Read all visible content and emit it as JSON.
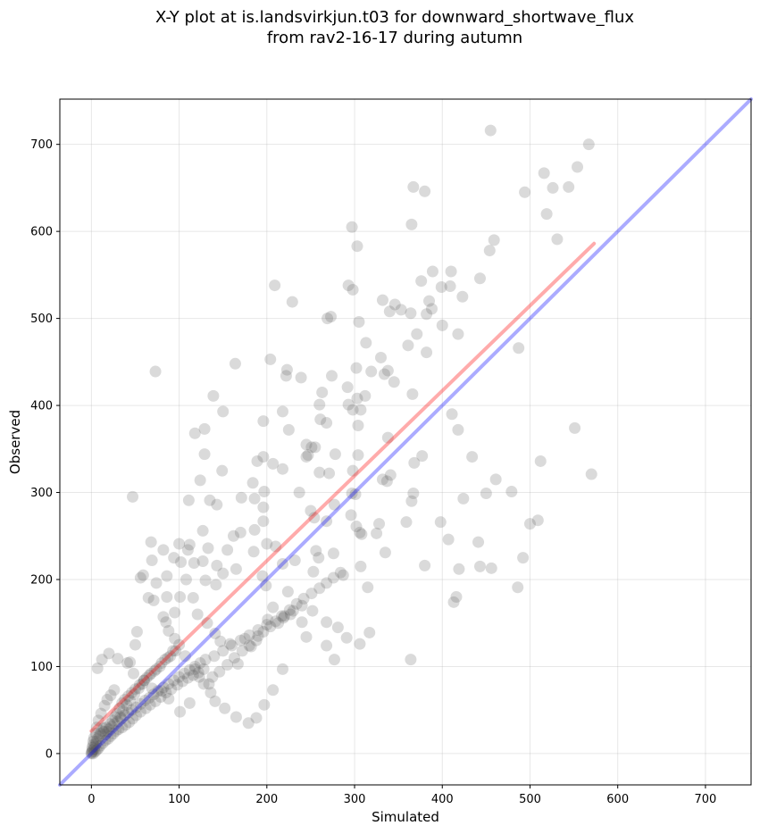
{
  "chart_data": {
    "type": "scatter",
    "title": "X-Y plot at is.landsvirkjun.t03 for downward_shortwave_flux\nfrom rav2-16-17 during autumn",
    "title_lines": [
      "X-Y plot at is.landsvirkjun.t03 for downward_shortwave_flux",
      "from rav2-16-17 during autumn"
    ],
    "xlabel": "Simulated",
    "ylabel": "Observed",
    "xlim": [
      -36,
      752
    ],
    "ylim": [
      -36,
      752
    ],
    "xticks": [
      0,
      100,
      200,
      300,
      400,
      500,
      600,
      700
    ],
    "yticks": [
      0,
      100,
      200,
      300,
      400,
      500,
      600,
      700
    ],
    "grid": true,
    "colors": {
      "points": "#555555",
      "identity_line": "#0000ff",
      "regression_line": "#ff0000"
    },
    "reference_lines": [
      {
        "kind": "identity",
        "x": [
          -36,
          752
        ],
        "y": [
          -36,
          752
        ],
        "color": "#0000ff"
      },
      {
        "kind": "regression",
        "x": [
          0,
          573
        ],
        "y": [
          26,
          586
        ],
        "color": "#ff0000"
      }
    ],
    "points": [
      [
        455,
        716
      ],
      [
        567,
        700
      ],
      [
        554,
        674
      ],
      [
        516,
        667
      ],
      [
        544,
        651
      ],
      [
        526,
        650
      ],
      [
        367,
        651
      ],
      [
        380,
        646
      ],
      [
        494,
        645
      ],
      [
        519,
        620
      ],
      [
        531,
        591
      ],
      [
        297,
        605
      ],
      [
        459,
        590
      ],
      [
        303,
        583
      ],
      [
        454,
        578
      ],
      [
        365,
        608
      ],
      [
        410,
        554
      ],
      [
        389,
        554
      ],
      [
        443,
        546
      ],
      [
        376,
        543
      ],
      [
        209,
        538
      ],
      [
        293,
        538
      ],
      [
        298,
        533
      ],
      [
        399,
        536
      ],
      [
        409,
        537
      ],
      [
        423,
        525
      ],
      [
        385,
        520
      ],
      [
        388,
        511
      ],
      [
        229,
        519
      ],
      [
        332,
        521
      ],
      [
        346,
        516
      ],
      [
        353,
        510
      ],
      [
        340,
        508
      ],
      [
        364,
        506
      ],
      [
        273,
        502
      ],
      [
        382,
        505
      ],
      [
        305,
        496
      ],
      [
        400,
        492
      ],
      [
        418,
        482
      ],
      [
        371,
        482
      ],
      [
        269,
        500
      ],
      [
        313,
        472
      ],
      [
        487,
        466
      ],
      [
        361,
        469
      ],
      [
        382,
        461
      ],
      [
        330,
        455
      ],
      [
        204,
        453
      ],
      [
        164,
        448
      ],
      [
        223,
        441
      ],
      [
        73,
        439
      ],
      [
        338,
        440
      ],
      [
        334,
        436
      ],
      [
        302,
        443
      ],
      [
        222,
        434
      ],
      [
        274,
        434
      ],
      [
        312,
        411
      ],
      [
        366,
        413
      ],
      [
        239,
        432
      ],
      [
        319,
        439
      ],
      [
        263,
        415
      ],
      [
        303,
        408
      ],
      [
        345,
        427
      ],
      [
        260,
        401
      ],
      [
        292,
        421
      ],
      [
        307,
        395
      ],
      [
        293,
        401
      ],
      [
        298,
        395
      ],
      [
        268,
        380
      ],
      [
        196,
        382
      ],
      [
        261,
        384
      ],
      [
        218,
        393
      ],
      [
        411,
        390
      ],
      [
        304,
        377
      ],
      [
        418,
        372
      ],
      [
        225,
        372
      ],
      [
        150,
        393
      ],
      [
        139,
        411
      ],
      [
        118,
        368
      ],
      [
        129,
        373
      ],
      [
        338,
        363
      ],
      [
        551,
        374
      ],
      [
        245,
        355
      ],
      [
        337,
        313
      ],
      [
        247,
        343
      ],
      [
        271,
        322
      ],
      [
        512,
        336
      ],
      [
        260,
        323
      ],
      [
        245,
        341
      ],
      [
        304,
        343
      ],
      [
        255,
        352
      ],
      [
        251,
        352
      ],
      [
        237,
        300
      ],
      [
        218,
        327
      ],
      [
        189,
        336
      ],
      [
        196,
        341
      ],
      [
        149,
        325
      ],
      [
        207,
        333
      ],
      [
        184,
        311
      ],
      [
        197,
        301
      ],
      [
        377,
        342
      ],
      [
        341,
        320
      ],
      [
        434,
        341
      ],
      [
        278,
        344
      ],
      [
        298,
        325
      ],
      [
        297,
        299
      ],
      [
        332,
        315
      ],
      [
        365,
        290
      ],
      [
        367,
        299
      ],
      [
        368,
        334
      ],
      [
        570,
        321
      ],
      [
        479,
        301
      ],
      [
        461,
        315
      ],
      [
        450,
        299
      ],
      [
        424,
        293
      ],
      [
        301,
        298
      ],
      [
        171,
        294
      ],
      [
        186,
        293
      ],
      [
        196,
        267
      ],
      [
        277,
        286
      ],
      [
        296,
        274
      ],
      [
        196,
        283
      ],
      [
        111,
        291
      ],
      [
        135,
        291
      ],
      [
        143,
        286
      ],
      [
        162,
        250
      ],
      [
        170,
        254
      ],
      [
        186,
        257
      ],
      [
        200,
        241
      ],
      [
        210,
        238
      ],
      [
        250,
        279
      ],
      [
        254,
        271
      ],
      [
        268,
        267
      ],
      [
        302,
        261
      ],
      [
        306,
        254
      ],
      [
        308,
        252
      ],
      [
        328,
        264
      ],
      [
        359,
        266
      ],
      [
        398,
        266
      ],
      [
        407,
        246
      ],
      [
        441,
        243
      ],
      [
        500,
        264
      ],
      [
        509,
        268
      ],
      [
        47,
        295
      ],
      [
        124,
        314
      ],
      [
        129,
        344
      ],
      [
        127,
        256
      ],
      [
        112,
        240
      ],
      [
        100,
        241
      ],
      [
        82,
        234
      ],
      [
        68,
        243
      ],
      [
        69,
        222
      ],
      [
        94,
        225
      ],
      [
        102,
        220
      ],
      [
        108,
        200
      ],
      [
        110,
        234
      ],
      [
        117,
        219
      ],
      [
        127,
        221
      ],
      [
        133,
        236
      ],
      [
        143,
        216
      ],
      [
        150,
        207
      ],
      [
        155,
        234
      ],
      [
        165,
        212
      ],
      [
        185,
        232
      ],
      [
        195,
        204
      ],
      [
        199,
        193
      ],
      [
        218,
        218
      ],
      [
        232,
        222
      ],
      [
        259,
        225
      ],
      [
        253,
        209
      ],
      [
        256,
        233
      ],
      [
        276,
        230
      ],
      [
        287,
        205
      ],
      [
        307,
        215
      ],
      [
        315,
        191
      ],
      [
        380,
        216
      ],
      [
        419,
        212
      ],
      [
        443,
        215
      ],
      [
        456,
        213
      ],
      [
        492,
        225
      ],
      [
        486,
        191
      ],
      [
        416,
        180
      ],
      [
        413,
        174
      ],
      [
        325,
        253
      ],
      [
        335,
        231
      ],
      [
        56,
        202
      ],
      [
        59,
        205
      ],
      [
        74,
        196
      ],
      [
        86,
        204
      ],
      [
        86,
        180
      ],
      [
        95,
        162
      ],
      [
        101,
        180
      ],
      [
        116,
        179
      ],
      [
        130,
        199
      ],
      [
        142,
        194
      ],
      [
        121,
        160
      ],
      [
        132,
        150
      ],
      [
        141,
        138
      ],
      [
        147,
        129
      ],
      [
        158,
        126
      ],
      [
        167,
        103
      ],
      [
        175,
        132
      ],
      [
        182,
        123
      ],
      [
        190,
        135
      ],
      [
        201,
        154
      ],
      [
        207,
        168
      ],
      [
        224,
        186
      ],
      [
        217,
        158
      ],
      [
        227,
        160
      ],
      [
        240,
        151
      ],
      [
        252,
        164
      ],
      [
        268,
        151
      ],
      [
        281,
        145
      ],
      [
        291,
        133
      ],
      [
        306,
        126
      ],
      [
        317,
        139
      ],
      [
        364,
        108
      ],
      [
        245,
        134
      ],
      [
        268,
        124
      ],
      [
        277,
        108
      ],
      [
        65,
        179
      ],
      [
        71,
        176
      ],
      [
        82,
        157
      ],
      [
        85,
        151
      ],
      [
        88,
        141
      ],
      [
        95,
        132
      ],
      [
        107,
        112
      ],
      [
        118,
        97
      ],
      [
        123,
        88
      ],
      [
        128,
        80
      ],
      [
        136,
        70
      ],
      [
        141,
        60
      ],
      [
        152,
        52
      ],
      [
        165,
        42
      ],
      [
        179,
        35
      ],
      [
        188,
        41
      ],
      [
        197,
        56
      ],
      [
        207,
        73
      ],
      [
        218,
        97
      ],
      [
        112,
        58
      ],
      [
        101,
        48
      ],
      [
        88,
        63
      ],
      [
        80,
        72
      ],
      [
        69,
        75
      ],
      [
        60,
        84
      ],
      [
        48,
        92
      ],
      [
        41,
        104
      ],
      [
        30,
        109
      ],
      [
        20,
        115
      ],
      [
        12,
        108
      ],
      [
        7,
        98
      ],
      [
        52,
        140
      ],
      [
        50,
        125
      ],
      [
        44,
        105
      ],
      [
        26,
        73
      ],
      [
        22,
        67
      ],
      [
        18,
        62
      ],
      [
        15,
        55
      ],
      [
        11,
        46
      ],
      [
        8,
        38
      ],
      [
        6,
        30
      ],
      [
        5,
        23
      ],
      [
        3,
        18
      ],
      [
        2,
        14
      ],
      [
        2,
        10
      ],
      [
        1,
        7
      ],
      [
        1,
        4
      ],
      [
        1,
        2
      ],
      [
        0,
        1
      ],
      [
        0,
        0
      ],
      [
        2,
        0
      ],
      [
        4,
        2
      ],
      [
        6,
        4
      ],
      [
        8,
        6
      ],
      [
        10,
        9
      ],
      [
        13,
        12
      ],
      [
        16,
        15
      ],
      [
        19,
        17
      ],
      [
        22,
        20
      ],
      [
        25,
        23
      ],
      [
        28,
        26
      ],
      [
        31,
        28
      ],
      [
        35,
        30
      ],
      [
        39,
        33
      ],
      [
        43,
        36
      ],
      [
        47,
        40
      ],
      [
        51,
        44
      ],
      [
        56,
        48
      ],
      [
        62,
        52
      ],
      [
        67,
        56
      ],
      [
        73,
        60
      ],
      [
        79,
        65
      ],
      [
        85,
        70
      ],
      [
        91,
        74
      ],
      [
        98,
        79
      ],
      [
        104,
        83
      ],
      [
        110,
        87
      ],
      [
        116,
        90
      ],
      [
        122,
        93
      ],
      [
        128,
        97
      ],
      [
        33,
        42
      ],
      [
        36,
        49
      ],
      [
        40,
        56
      ],
      [
        44,
        61
      ],
      [
        49,
        68
      ],
      [
        54,
        75
      ],
      [
        58,
        80
      ],
      [
        63,
        87
      ],
      [
        68,
        92
      ],
      [
        74,
        97
      ],
      [
        80,
        104
      ],
      [
        87,
        110
      ],
      [
        93,
        118
      ],
      [
        100,
        125
      ],
      [
        14,
        25
      ],
      [
        17,
        30
      ],
      [
        21,
        34
      ],
      [
        24,
        38
      ],
      [
        27,
        42
      ],
      [
        29,
        46
      ],
      [
        32,
        52
      ],
      [
        35,
        58
      ],
      [
        38,
        62
      ],
      [
        42,
        66
      ],
      [
        46,
        70
      ],
      [
        50,
        74
      ],
      [
        55,
        79
      ],
      [
        60,
        84
      ],
      [
        66,
        90
      ],
      [
        72,
        95
      ],
      [
        78,
        100
      ],
      [
        84,
        108
      ],
      [
        90,
        112
      ],
      [
        96,
        118
      ],
      [
        3,
        5
      ],
      [
        4,
        8
      ],
      [
        5,
        11
      ],
      [
        6,
        14
      ],
      [
        7,
        17
      ],
      [
        9,
        20
      ],
      [
        10,
        23
      ],
      [
        12,
        26
      ],
      [
        14,
        29
      ],
      [
        16,
        22
      ],
      [
        18,
        25
      ],
      [
        20,
        28
      ],
      [
        23,
        31
      ],
      [
        26,
        34
      ],
      [
        30,
        37
      ],
      [
        34,
        40
      ],
      [
        38,
        44
      ],
      [
        42,
        47
      ],
      [
        46,
        50
      ],
      [
        51,
        53
      ],
      [
        56,
        57
      ],
      [
        61,
        61
      ],
      [
        66,
        64
      ],
      [
        71,
        68
      ],
      [
        76,
        72
      ],
      [
        82,
        76
      ],
      [
        88,
        80
      ],
      [
        94,
        84
      ],
      [
        100,
        88
      ],
      [
        106,
        92
      ],
      [
        112,
        96
      ],
      [
        118,
        100
      ],
      [
        124,
        104
      ],
      [
        130,
        108
      ],
      [
        140,
        112
      ],
      [
        150,
        118
      ],
      [
        160,
        124
      ],
      [
        170,
        130
      ],
      [
        180,
        136
      ],
      [
        190,
        142
      ],
      [
        200,
        148
      ],
      [
        210,
        152
      ],
      [
        220,
        158
      ],
      [
        230,
        164
      ],
      [
        240,
        170
      ],
      [
        134,
        80
      ],
      [
        138,
        88
      ],
      [
        146,
        94
      ],
      [
        155,
        102
      ],
      [
        163,
        110
      ],
      [
        172,
        118
      ],
      [
        180,
        124
      ],
      [
        188,
        130
      ],
      [
        196,
        140
      ],
      [
        204,
        146
      ],
      [
        213,
        150
      ],
      [
        219,
        156
      ],
      [
        226,
        165
      ],
      [
        234,
        172
      ],
      [
        242,
        178
      ],
      [
        251,
        184
      ],
      [
        260,
        190
      ],
      [
        268,
        196
      ],
      [
        276,
        202
      ],
      [
        284,
        208
      ]
    ]
  }
}
